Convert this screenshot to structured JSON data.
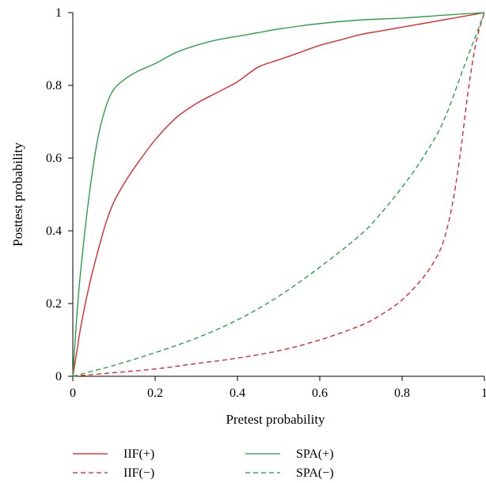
{
  "chart_data": {
    "type": "line",
    "xlabel": "Pretest probability",
    "ylabel": "Posttest probability",
    "xlim": [
      0,
      1
    ],
    "ylim": [
      0,
      1
    ],
    "x_ticks": [
      0,
      0.2,
      0.4,
      0.6,
      0.8,
      1
    ],
    "x_tick_labels": [
      "0",
      "0.2",
      "0.4",
      "0.6",
      "0.8",
      "1"
    ],
    "y_ticks": [
      0,
      0.2,
      0.4,
      0.6,
      0.8,
      1
    ],
    "y_tick_labels": [
      "0",
      "0.2",
      "0.4",
      "0.6",
      "0.8",
      "1"
    ],
    "grid": false,
    "legend_position": "bottom",
    "series": [
      {
        "name": "IIF(+)",
        "color": "#e31a1c",
        "dash": "solid",
        "x": [
          0,
          0.01,
          0.02,
          0.04,
          0.06,
          0.08,
          0.1,
          0.13,
          0.16,
          0.2,
          0.25,
          0.3,
          0.35,
          0.4,
          0.45,
          0.5,
          0.55,
          0.6,
          0.65,
          0.7,
          0.75,
          0.8,
          0.85,
          0.9,
          0.95,
          1
        ],
        "y": [
          0,
          0.07,
          0.14,
          0.25,
          0.34,
          0.42,
          0.48,
          0.54,
          0.59,
          0.65,
          0.71,
          0.75,
          0.78,
          0.81,
          0.85,
          0.87,
          0.89,
          0.91,
          0.925,
          0.94,
          0.95,
          0.96,
          0.97,
          0.98,
          0.99,
          1
        ]
      },
      {
        "name": "IIF(−)",
        "color": "#e31a1c",
        "dash": "dashed",
        "x": [
          0,
          0.1,
          0.2,
          0.3,
          0.4,
          0.5,
          0.6,
          0.7,
          0.75,
          0.8,
          0.85,
          0.88,
          0.9,
          0.92,
          0.94,
          0.96,
          0.98,
          1
        ],
        "y": [
          0,
          0.01,
          0.02,
          0.035,
          0.05,
          0.07,
          0.1,
          0.14,
          0.17,
          0.21,
          0.27,
          0.32,
          0.37,
          0.46,
          0.6,
          0.78,
          0.92,
          1
        ]
      },
      {
        "name": "SPA(+)",
        "color": "#1a9c3c",
        "dash": "solid",
        "x": [
          0,
          0.01,
          0.02,
          0.04,
          0.06,
          0.08,
          0.1,
          0.13,
          0.16,
          0.2,
          0.25,
          0.3,
          0.35,
          0.4,
          0.45,
          0.5,
          0.6,
          0.7,
          0.8,
          0.9,
          1
        ],
        "y": [
          0,
          0.17,
          0.3,
          0.5,
          0.65,
          0.74,
          0.79,
          0.82,
          0.84,
          0.86,
          0.89,
          0.91,
          0.925,
          0.935,
          0.945,
          0.955,
          0.97,
          0.98,
          0.985,
          0.993,
          1
        ]
      },
      {
        "name": "SPA(−)",
        "color": "#1a9c3c",
        "dash": "dashed",
        "x": [
          0,
          0.1,
          0.2,
          0.3,
          0.4,
          0.5,
          0.6,
          0.7,
          0.75,
          0.8,
          0.85,
          0.9,
          0.95,
          1
        ],
        "y": [
          0,
          0.03,
          0.065,
          0.105,
          0.155,
          0.22,
          0.3,
          0.39,
          0.45,
          0.52,
          0.6,
          0.7,
          0.85,
          1
        ]
      }
    ]
  }
}
